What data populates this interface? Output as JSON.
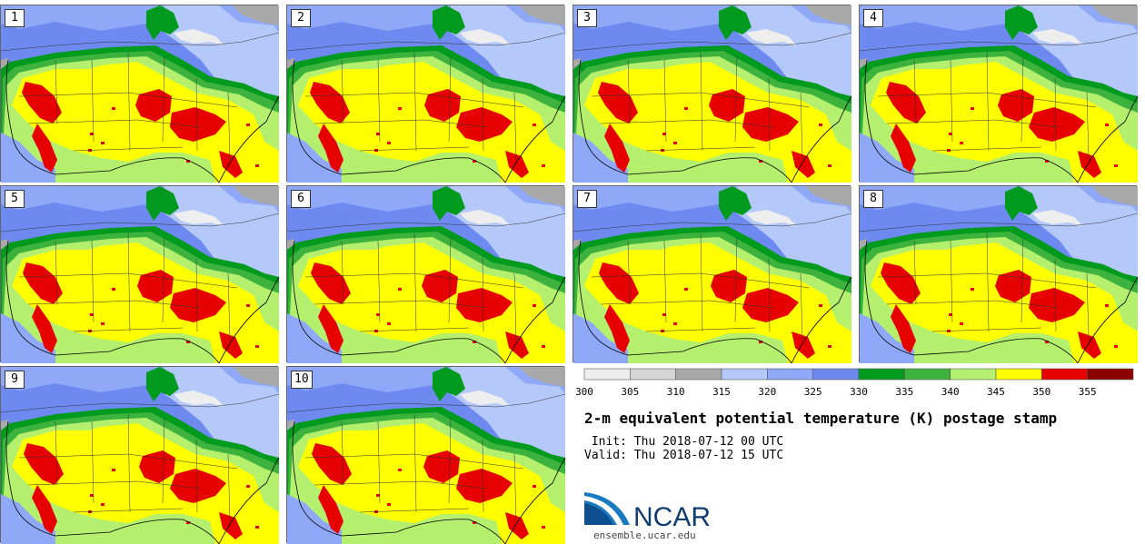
{
  "panels": [
    {
      "label": "1"
    },
    {
      "label": "2"
    },
    {
      "label": "3"
    },
    {
      "label": "4"
    },
    {
      "label": "5"
    },
    {
      "label": "6"
    },
    {
      "label": "7"
    },
    {
      "label": "8"
    },
    {
      "label": "9"
    },
    {
      "label": "10"
    }
  ],
  "colorbar": {
    "colors": [
      "#eeeeee",
      "#d6d6d6",
      "#a9a9a9",
      "#b4c8fa",
      "#8fa8f8",
      "#6e8af0",
      "#009a1f",
      "#3db23d",
      "#b4f06e",
      "#ffff00",
      "#e60000",
      "#8c0000"
    ],
    "tick_labels": [
      "300",
      "305",
      "310",
      "315",
      "320",
      "325",
      "330",
      "335",
      "340",
      "345",
      "350",
      "355"
    ]
  },
  "title": "2-m equivalent potential temperature (K) postage stamp",
  "init": " Init: Thu 2018-07-12 00 UTC",
  "valid": "Valid: Thu 2018-07-12 15 UTC",
  "logo": {
    "text": "NCAR",
    "url": "ensemble.ucar.edu"
  }
}
